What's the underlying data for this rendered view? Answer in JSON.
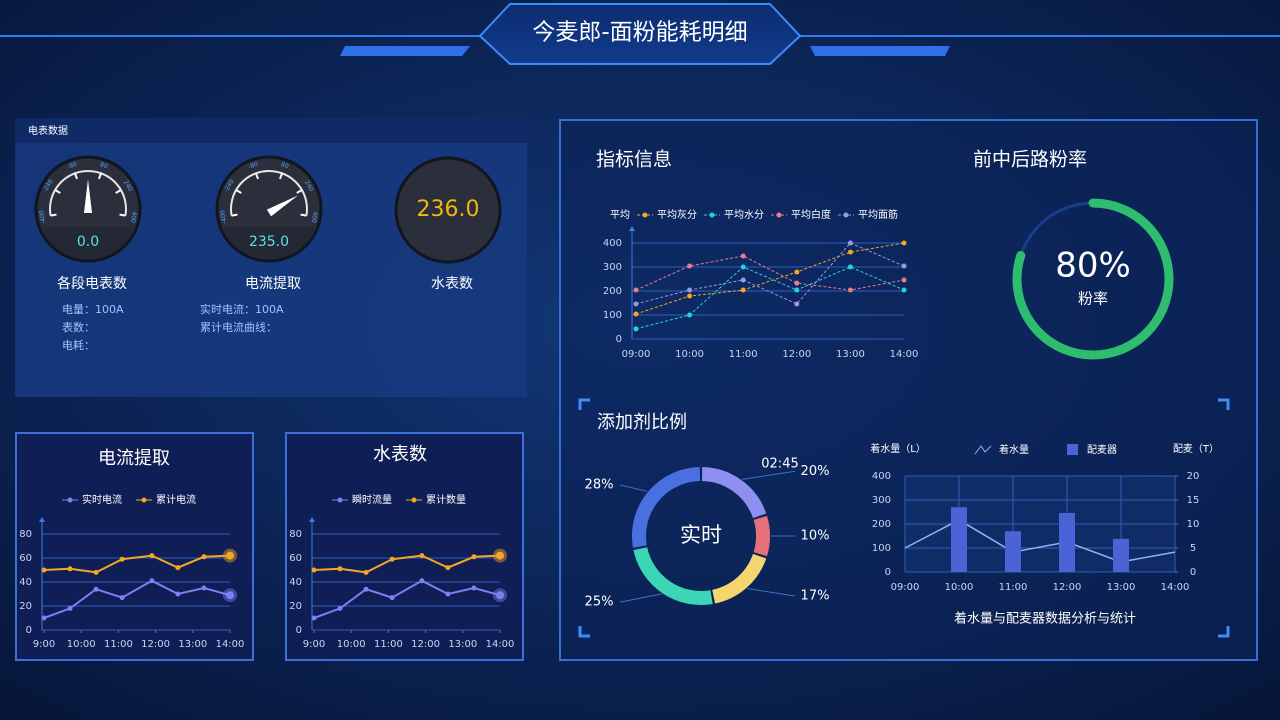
{
  "header": {
    "title": "今麦郎-面粉能耗明细"
  },
  "meter_panel": {
    "title": "电表数据",
    "scale_ticks": [
      -400,
      -240,
      -80,
      80,
      240,
      400
    ],
    "gauges": [
      {
        "value": 0,
        "value_label": "0.0",
        "name": "各段电表数",
        "lines": [
          "电量：100A",
          "表数：",
          "电耗："
        ]
      },
      {
        "value": 235,
        "value_label": "235.0",
        "name": "电流提取",
        "lines": [
          "实时电流：100A",
          "累计电流曲线："
        ]
      },
      {
        "reading": "236.0",
        "name": "水表数"
      }
    ]
  },
  "chart_data": [
    {
      "type": "line",
      "title": "指标信息",
      "y_label": "平均",
      "categories": [
        "09:00",
        "10:00",
        "11:00",
        "12:00",
        "13:00",
        "14:00"
      ],
      "ylim": [
        0,
        400
      ],
      "yticks": [
        0,
        100,
        200,
        300,
        400
      ],
      "grid": true,
      "line_style": "dashed",
      "series": [
        {
          "name": "平均灰分",
          "color": "#f5a623",
          "values": [
            104,
            179,
            204,
            279,
            362,
            400
          ]
        },
        {
          "name": "平均水分",
          "color": "#22d3e6",
          "values": [
            42,
            100,
            300,
            204,
            300,
            204
          ]
        },
        {
          "name": "平均白度",
          "color": "#e87c8a",
          "values": [
            204,
            304,
            346,
            233,
            204,
            246
          ]
        },
        {
          "name": "平均面筋",
          "color": "#9a96ec",
          "values": [
            146,
            204,
            246,
            146,
            400,
            304
          ]
        }
      ]
    },
    {
      "type": "ring",
      "title": "前中后路粉率",
      "value": 80,
      "value_label": "80%",
      "label": "粉率",
      "color": "#2ebd6e"
    },
    {
      "type": "donut",
      "title": "添加剂比例",
      "center_label": "实时",
      "time": "02:45",
      "values": [
        20,
        10,
        17,
        25,
        28
      ],
      "value_labels": [
        "20%",
        "10%",
        "17%",
        "25%",
        "28%"
      ],
      "colors": [
        "#8e8ff0",
        "#e8707a",
        "#f5d56e",
        "#3ad6b5",
        "#4a6fe0"
      ]
    },
    {
      "type": "combo",
      "y_label": "着水量（L）",
      "y2_label": "配麦（T）",
      "caption": "着水量与配麦器数据分析与统计",
      "categories": [
        "09:00",
        "10:00",
        "11:00",
        "12:00",
        "13:00",
        "14:00"
      ],
      "ylim": [
        0,
        400
      ],
      "yticks": [
        0,
        100,
        200,
        300,
        400
      ],
      "y2lim": [
        0,
        20
      ],
      "y2ticks": [
        0,
        5,
        10,
        15,
        20
      ],
      "grid": true,
      "series": [
        {
          "name": "着水量",
          "type": "line",
          "color": "#8fb3f5",
          "values": [
            100,
            217,
            83,
            125,
            42,
            83
          ]
        },
        {
          "name": "配麦器",
          "type": "bar",
          "axis": "y2",
          "color": "#4a63d6",
          "values": [
            null,
            13.5,
            8.5,
            12.3,
            6.9,
            null
          ]
        }
      ]
    },
    {
      "type": "line",
      "title": "电流提取",
      "x": [
        9,
        9.7,
        10.4,
        11.1,
        11.9,
        12.6,
        13.3,
        14
      ],
      "xlim": [
        9,
        14
      ],
      "xticks": [
        {
          "value": 9,
          "label": "9:00"
        },
        {
          "value": 10,
          "label": "10:00"
        },
        {
          "value": 11,
          "label": "11:00"
        },
        {
          "value": 12,
          "label": "12:00"
        },
        {
          "value": 13,
          "label": "13:00"
        },
        {
          "value": 14,
          "label": "14:00"
        }
      ],
      "ylim": [
        0,
        80
      ],
      "yticks": [
        0,
        20,
        40,
        60,
        80
      ],
      "grid": true,
      "highlight_last": true,
      "series": [
        {
          "name": "实时电流",
          "color": "#7d7ff2",
          "values": [
            10,
            18,
            34,
            27,
            41,
            30,
            35,
            29
          ]
        },
        {
          "name": "累计电流",
          "color": "#f5a623",
          "values": [
            50,
            51,
            48,
            59,
            62,
            52,
            61,
            62
          ]
        }
      ]
    },
    {
      "type": "line",
      "title": "水表数",
      "x": [
        9,
        9.7,
        10.4,
        11.1,
        11.9,
        12.6,
        13.3,
        14
      ],
      "xlim": [
        9,
        14
      ],
      "xticks": [
        {
          "value": 9,
          "label": "9:00"
        },
        {
          "value": 10,
          "label": "10:00"
        },
        {
          "value": 11,
          "label": "11:00"
        },
        {
          "value": 12,
          "label": "12:00"
        },
        {
          "value": 13,
          "label": "13:00"
        },
        {
          "value": 14,
          "label": "14:00"
        }
      ],
      "ylim": [
        0,
        80
      ],
      "yticks": [
        0,
        20,
        40,
        60,
        80
      ],
      "grid": true,
      "highlight_last": true,
      "series": [
        {
          "name": "瞬时流量",
          "color": "#7d7ff2",
          "values": [
            10,
            18,
            34,
            27,
            41,
            30,
            35,
            29
          ]
        },
        {
          "name": "累计数量",
          "color": "#f5a623",
          "values": [
            50,
            51,
            48,
            59,
            62,
            52,
            61,
            62
          ]
        }
      ]
    }
  ]
}
